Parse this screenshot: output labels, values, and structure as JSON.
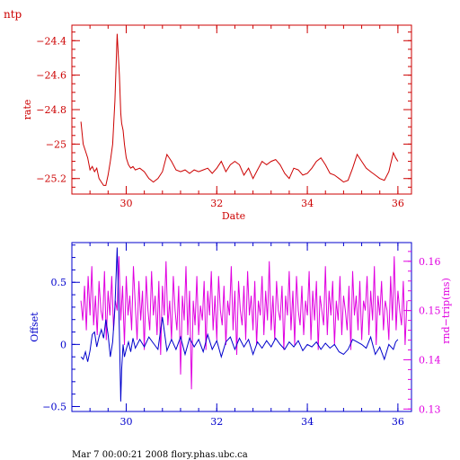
{
  "header": {
    "label": "ntp"
  },
  "footer": {
    "text": "Mar  7 00:00:21 2008 flory.phas.ubc.ca"
  },
  "colors": {
    "top": "#cc0000",
    "offset": "#0000cc",
    "rndtrip": "#e000e0",
    "text": "#000000"
  },
  "chart_data": [
    {
      "type": "line",
      "title": "",
      "xlabel": "Date",
      "ylabel": "rate",
      "xlim": [
        28.8,
        36.3
      ],
      "ylim": [
        -25.29,
        -24.31
      ],
      "xticks": [
        30,
        32,
        34,
        36
      ],
      "yticks": [
        -24.4,
        -24.6,
        -24.8,
        -25,
        -25.2
      ],
      "ytick_labels": [
        "−24.4",
        "−24.6",
        "−24.8",
        "−25",
        "−25.2"
      ],
      "series": [
        {
          "color": "#cc0000",
          "x": [
            29.0,
            29.05,
            29.1,
            29.15,
            29.2,
            29.25,
            29.3,
            29.35,
            29.4,
            29.45,
            29.5,
            29.55,
            29.6,
            29.65,
            29.7,
            29.75,
            29.8,
            29.85,
            29.88,
            29.9,
            29.93,
            29.96,
            30.0,
            30.05,
            30.1,
            30.15,
            30.2,
            30.3,
            30.4,
            30.5,
            30.6,
            30.7,
            30.8,
            30.9,
            31.0,
            31.1,
            31.2,
            31.3,
            31.4,
            31.5,
            31.6,
            31.7,
            31.8,
            31.9,
            32.0,
            32.1,
            32.2,
            32.3,
            32.4,
            32.5,
            32.6,
            32.7,
            32.8,
            32.9,
            33.0,
            33.1,
            33.2,
            33.3,
            33.4,
            33.5,
            33.6,
            33.7,
            33.8,
            33.9,
            34.0,
            34.1,
            34.2,
            34.3,
            34.4,
            34.5,
            34.6,
            34.7,
            34.8,
            34.9,
            35.0,
            35.1,
            35.2,
            35.3,
            35.4,
            35.5,
            35.6,
            35.7,
            35.8,
            35.9,
            35.95,
            36.0
          ],
          "y": [
            -24.87,
            -25.0,
            -25.04,
            -25.08,
            -25.15,
            -25.13,
            -25.16,
            -25.14,
            -25.2,
            -25.22,
            -25.24,
            -25.24,
            -25.18,
            -25.1,
            -25.0,
            -24.75,
            -24.36,
            -24.6,
            -24.82,
            -24.88,
            -24.92,
            -25.0,
            -25.08,
            -25.12,
            -25.14,
            -25.13,
            -25.15,
            -25.14,
            -25.16,
            -25.2,
            -25.22,
            -25.2,
            -25.16,
            -25.06,
            -25.1,
            -25.15,
            -25.16,
            -25.15,
            -25.17,
            -25.15,
            -25.16,
            -25.15,
            -25.14,
            -25.17,
            -25.14,
            -25.1,
            -25.16,
            -25.12,
            -25.1,
            -25.12,
            -25.18,
            -25.14,
            -25.2,
            -25.15,
            -25.1,
            -25.12,
            -25.1,
            -25.09,
            -25.12,
            -25.17,
            -25.2,
            -25.14,
            -25.15,
            -25.18,
            -25.17,
            -25.14,
            -25.1,
            -25.08,
            -25.12,
            -25.17,
            -25.18,
            -25.2,
            -25.22,
            -25.21,
            -25.14,
            -25.06,
            -25.1,
            -25.14,
            -25.16,
            -25.18,
            -25.2,
            -25.21,
            -25.16,
            -25.05,
            -25.08,
            -25.1
          ]
        }
      ]
    },
    {
      "type": "line",
      "title": "",
      "xlabel": "",
      "ylabel": "Offset",
      "y2label": "rnd−trip(ms)",
      "xlim": [
        28.8,
        36.3
      ],
      "ylim": [
        -0.54,
        0.82
      ],
      "y2lim": [
        0.1295,
        0.1638
      ],
      "xticks": [
        30,
        32,
        34,
        36
      ],
      "yticks": [
        0.5,
        0,
        -0.5
      ],
      "ytick_labels": [
        "0.5",
        "0",
        "−0.5"
      ],
      "y2ticks": [
        0.16,
        0.15,
        0.14,
        0.13
      ],
      "y2tick_labels": [
        "0.16",
        "0.15",
        "0.14",
        "0.13"
      ],
      "series": [
        {
          "axis": "left",
          "color": "#0000cc",
          "x": [
            29.0,
            29.05,
            29.1,
            29.15,
            29.2,
            29.25,
            29.3,
            29.35,
            29.4,
            29.45,
            29.5,
            29.55,
            29.6,
            29.65,
            29.7,
            29.75,
            29.8,
            29.85,
            29.88,
            29.9,
            29.93,
            29.96,
            30.0,
            30.05,
            30.1,
            30.15,
            30.2,
            30.3,
            30.4,
            30.5,
            30.6,
            30.7,
            30.8,
            30.9,
            31.0,
            31.1,
            31.2,
            31.3,
            31.4,
            31.5,
            31.6,
            31.7,
            31.8,
            31.9,
            32.0,
            32.1,
            32.2,
            32.3,
            32.4,
            32.5,
            32.6,
            32.7,
            32.8,
            32.9,
            33.0,
            33.1,
            33.2,
            33.3,
            33.4,
            33.5,
            33.6,
            33.7,
            33.8,
            33.9,
            34.0,
            34.1,
            34.2,
            34.3,
            34.4,
            34.5,
            34.6,
            34.7,
            34.8,
            34.9,
            35.0,
            35.1,
            35.2,
            35.3,
            35.4,
            35.5,
            35.6,
            35.7,
            35.8,
            35.9,
            35.95,
            36.0
          ],
          "y": [
            -0.1,
            -0.12,
            -0.06,
            -0.14,
            -0.05,
            0.08,
            0.1,
            -0.02,
            0.06,
            0.12,
            0.05,
            0.2,
            0.08,
            -0.1,
            0.02,
            0.3,
            0.78,
            0.1,
            -0.46,
            -0.2,
            0.0,
            -0.1,
            -0.04,
            0.02,
            -0.06,
            0.05,
            -0.03,
            0.04,
            -0.02,
            0.06,
            0.01,
            -0.04,
            0.22,
            -0.05,
            0.04,
            -0.04,
            0.06,
            -0.08,
            0.05,
            -0.02,
            0.04,
            -0.06,
            0.08,
            -0.04,
            0.03,
            -0.1,
            0.02,
            0.06,
            -0.04,
            0.05,
            -0.02,
            0.04,
            -0.08,
            0.02,
            -0.03,
            0.03,
            -0.02,
            0.05,
            0.0,
            -0.04,
            0.02,
            -0.02,
            0.03,
            -0.05,
            0.0,
            -0.02,
            0.02,
            -0.04,
            0.01,
            -0.03,
            0.0,
            -0.06,
            -0.08,
            -0.04,
            0.04,
            0.02,
            0.0,
            -0.03,
            0.06,
            -0.08,
            -0.02,
            -0.12,
            0.0,
            -0.04,
            0.02,
            0.04
          ]
        },
        {
          "axis": "right",
          "color": "#e000e0",
          "x": [
            29.0,
            29.04,
            29.08,
            29.12,
            29.16,
            29.2,
            29.24,
            29.28,
            29.32,
            29.36,
            29.4,
            29.44,
            29.48,
            29.52,
            29.56,
            29.6,
            29.64,
            29.68,
            29.72,
            29.76,
            29.8,
            29.84,
            29.88,
            29.92,
            29.96,
            30.0,
            30.04,
            30.08,
            30.12,
            30.16,
            30.2,
            30.24,
            30.28,
            30.32,
            30.36,
            30.4,
            30.44,
            30.48,
            30.52,
            30.56,
            30.6,
            30.64,
            30.68,
            30.72,
            30.76,
            30.8,
            30.84,
            30.88,
            30.92,
            30.96,
            31.0,
            31.04,
            31.08,
            31.12,
            31.16,
            31.2,
            31.24,
            31.28,
            31.32,
            31.36,
            31.4,
            31.44,
            31.48,
            31.52,
            31.56,
            31.6,
            31.64,
            31.68,
            31.72,
            31.76,
            31.8,
            31.84,
            31.88,
            31.92,
            31.96,
            32.0,
            32.04,
            32.08,
            32.12,
            32.16,
            32.2,
            32.24,
            32.28,
            32.32,
            32.36,
            32.4,
            32.44,
            32.48,
            32.52,
            32.56,
            32.6,
            32.64,
            32.68,
            32.72,
            32.76,
            32.8,
            32.84,
            32.88,
            32.92,
            32.96,
            33.0,
            33.04,
            33.08,
            33.12,
            33.16,
            33.2,
            33.24,
            33.28,
            33.32,
            33.36,
            33.4,
            33.44,
            33.48,
            33.52,
            33.56,
            33.6,
            33.64,
            33.68,
            33.72,
            33.76,
            33.8,
            33.84,
            33.88,
            33.92,
            33.96,
            34.0,
            34.04,
            34.08,
            34.12,
            34.16,
            34.2,
            34.24,
            34.28,
            34.32,
            34.36,
            34.4,
            34.44,
            34.48,
            34.52,
            34.56,
            34.6,
            34.64,
            34.68,
            34.72,
            34.76,
            34.8,
            34.84,
            34.88,
            34.92,
            34.96,
            35.0,
            35.04,
            35.08,
            35.12,
            35.16,
            35.2,
            35.24,
            35.28,
            35.32,
            35.36,
            35.4,
            35.44,
            35.48,
            35.52,
            35.56,
            35.6,
            35.64,
            35.68,
            35.72,
            35.76,
            35.8,
            35.84,
            35.88,
            35.92,
            35.96,
            36.0,
            36.04,
            36.08,
            36.12,
            36.16,
            36.2
          ],
          "y": [
            0.152,
            0.148,
            0.155,
            0.146,
            0.157,
            0.149,
            0.159,
            0.147,
            0.153,
            0.145,
            0.156,
            0.15,
            0.148,
            0.158,
            0.144,
            0.154,
            0.149,
            0.157,
            0.146,
            0.152,
            0.15,
            0.161,
            0.148,
            0.155,
            0.143,
            0.157,
            0.149,
            0.153,
            0.146,
            0.159,
            0.151,
            0.144,
            0.156,
            0.148,
            0.154,
            0.142,
            0.157,
            0.15,
            0.146,
            0.158,
            0.149,
            0.153,
            0.145,
            0.156,
            0.141,
            0.155,
            0.149,
            0.16,
            0.147,
            0.152,
            0.144,
            0.157,
            0.15,
            0.146,
            0.155,
            0.137,
            0.153,
            0.148,
            0.159,
            0.145,
            0.154,
            0.134,
            0.152,
            0.147,
            0.157,
            0.145,
            0.151,
            0.148,
            0.156,
            0.142,
            0.154,
            0.149,
            0.158,
            0.146,
            0.153,
            0.144,
            0.157,
            0.15,
            0.147,
            0.155,
            0.143,
            0.152,
            0.149,
            0.159,
            0.146,
            0.154,
            0.141,
            0.156,
            0.15,
            0.147,
            0.155,
            0.144,
            0.158,
            0.149,
            0.153,
            0.146,
            0.156,
            0.143,
            0.152,
            0.149,
            0.157,
            0.145,
            0.154,
            0.148,
            0.16,
            0.146,
            0.153,
            0.144,
            0.156,
            0.15,
            0.148,
            0.155,
            0.142,
            0.153,
            0.149,
            0.158,
            0.146,
            0.154,
            0.143,
            0.157,
            0.15,
            0.147,
            0.155,
            0.145,
            0.152,
            0.149,
            0.158,
            0.144,
            0.154,
            0.148,
            0.156,
            0.142,
            0.153,
            0.15,
            0.147,
            0.159,
            0.145,
            0.154,
            0.149,
            0.156,
            0.143,
            0.152,
            0.148,
            0.157,
            0.145,
            0.153,
            0.15,
            0.146,
            0.155,
            0.142,
            0.158,
            0.149,
            0.153,
            0.146,
            0.156,
            0.144,
            0.152,
            0.15,
            0.157,
            0.145,
            0.154,
            0.148,
            0.159,
            0.143,
            0.153,
            0.149,
            0.156,
            0.146,
            0.152,
            0.15,
            0.144,
            0.157,
            0.148,
            0.161,
            0.146,
            0.154,
            0.15,
            0.147,
            0.156,
            0.143,
            0.152
          ]
        }
      ]
    }
  ]
}
